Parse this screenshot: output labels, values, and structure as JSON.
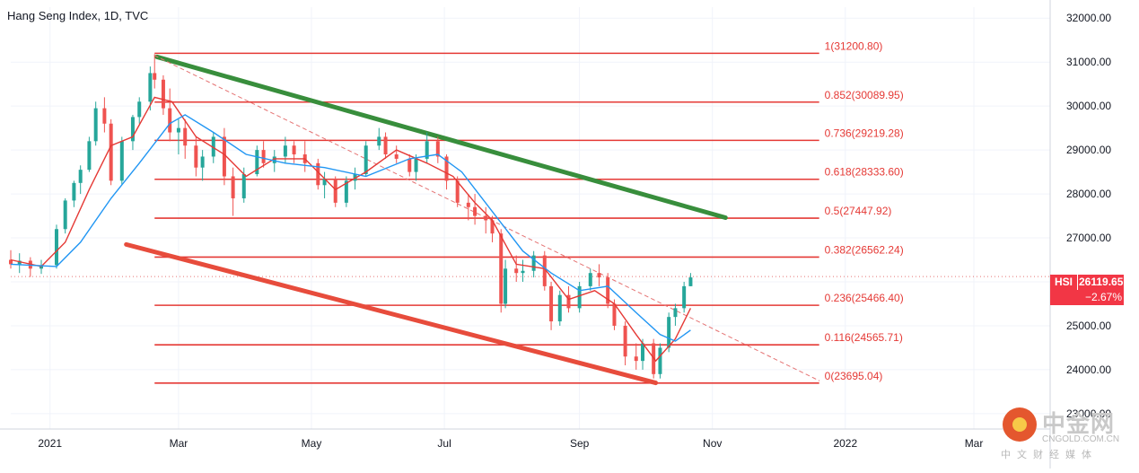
{
  "title": "Hang Seng Index, 1D, TVC",
  "chart_data": {
    "type": "candlestick",
    "symbol": "HSI",
    "last_price": "26119.65",
    "change": "−2.67%",
    "y_ticks": [
      "32000.00",
      "31000.00",
      "30000.00",
      "29000.00",
      "28000.00",
      "27000.00",
      "26000.00",
      "25000.00",
      "24000.00",
      "23000.00"
    ],
    "ylim": [
      22650,
      32250
    ],
    "x_labels": [
      {
        "label": "2021",
        "date": "2021-01-01"
      },
      {
        "label": "Mar",
        "date": "2021-03-01"
      },
      {
        "label": "May",
        "date": "2021-05-01"
      },
      {
        "label": "Jul",
        "date": "2021-07-01"
      },
      {
        "label": "Sep",
        "date": "2021-09-01"
      },
      {
        "label": "Nov",
        "date": "2021-11-01"
      },
      {
        "label": "2022",
        "date": "2022-01-01"
      },
      {
        "label": "Mar",
        "date": "2022-03-01"
      }
    ],
    "xlim": [
      "2020-12-14",
      "2022-04-05"
    ],
    "fibonacci": {
      "start_date": "2021-02-18",
      "end_date": "2021-12-20",
      "levels": [
        {
          "label": "1(31200.80)",
          "value": 31200.8
        },
        {
          "label": "0.852(30089.95)",
          "value": 30089.95
        },
        {
          "label": "0.736(29219.28)",
          "value": 29219.28
        },
        {
          "label": "0.618(28333.60)",
          "value": 28333.6
        },
        {
          "label": "0.5(27447.92)",
          "value": 27447.92
        },
        {
          "label": "0.382(26562.24)",
          "value": 26562.24
        },
        {
          "label": "0.236(25466.40)",
          "value": 25466.4
        },
        {
          "label": "0.116(24565.71)",
          "value": 24565.71
        },
        {
          "label": "0(23695.04)",
          "value": 23695.04
        }
      ]
    },
    "trendlines": [
      {
        "name": "green",
        "color": "#388e3c",
        "from": {
          "date": "2021-02-19",
          "value": 31120
        },
        "to": {
          "date": "2021-11-07",
          "value": 27460
        }
      },
      {
        "name": "red",
        "color": "#e74c3c",
        "from": {
          "date": "2021-02-05",
          "value": 26850
        },
        "to": {
          "date": "2021-10-06",
          "value": 23700
        }
      },
      {
        "name": "dashed",
        "color": "#e57373",
        "from": {
          "date": "2021-02-18",
          "value": 31150
        },
        "to": {
          "date": "2021-12-20",
          "value": 23750
        }
      }
    ],
    "candles": [
      {
        "d": "2020-12-14",
        "o": 26500,
        "h": 26720,
        "l": 26300,
        "c": 26400
      },
      {
        "d": "2020-12-18",
        "o": 26400,
        "h": 26650,
        "l": 26200,
        "c": 26480
      },
      {
        "d": "2020-12-23",
        "o": 26480,
        "h": 26560,
        "l": 26110,
        "c": 26300
      },
      {
        "d": "2020-12-28",
        "o": 26300,
        "h": 26500,
        "l": 26180,
        "c": 26380
      },
      {
        "d": "2021-01-04",
        "o": 26380,
        "h": 27300,
        "l": 26300,
        "c": 27200
      },
      {
        "d": "2021-01-08",
        "o": 27200,
        "h": 27900,
        "l": 27100,
        "c": 27850
      },
      {
        "d": "2021-01-12",
        "o": 27850,
        "h": 28300,
        "l": 27700,
        "c": 28250
      },
      {
        "d": "2021-01-15",
        "o": 28250,
        "h": 28650,
        "l": 28000,
        "c": 28550
      },
      {
        "d": "2021-01-19",
        "o": 28550,
        "h": 29300,
        "l": 28500,
        "c": 29200
      },
      {
        "d": "2021-01-22",
        "o": 29200,
        "h": 30100,
        "l": 29100,
        "c": 29950
      },
      {
        "d": "2021-01-26",
        "o": 29950,
        "h": 30200,
        "l": 29400,
        "c": 29600
      },
      {
        "d": "2021-01-29",
        "o": 29600,
        "h": 29700,
        "l": 28200,
        "c": 28300
      },
      {
        "d": "2021-02-03",
        "o": 28300,
        "h": 29300,
        "l": 28200,
        "c": 29200
      },
      {
        "d": "2021-02-08",
        "o": 29200,
        "h": 29800,
        "l": 29000,
        "c": 29750
      },
      {
        "d": "2021-02-11",
        "o": 29750,
        "h": 30200,
        "l": 29600,
        "c": 30100
      },
      {
        "d": "2021-02-16",
        "o": 30100,
        "h": 30900,
        "l": 29900,
        "c": 30750
      },
      {
        "d": "2021-02-18",
        "o": 30750,
        "h": 31180,
        "l": 30400,
        "c": 30600
      },
      {
        "d": "2021-02-22",
        "o": 30600,
        "h": 30700,
        "l": 29800,
        "c": 29950
      },
      {
        "d": "2021-02-25",
        "o": 29950,
        "h": 30400,
        "l": 29200,
        "c": 29400
      },
      {
        "d": "2021-03-01",
        "o": 29400,
        "h": 29700,
        "l": 28900,
        "c": 29500
      },
      {
        "d": "2021-03-04",
        "o": 29500,
        "h": 29700,
        "l": 28800,
        "c": 29100
      },
      {
        "d": "2021-03-09",
        "o": 29100,
        "h": 29300,
        "l": 28400,
        "c": 28600
      },
      {
        "d": "2021-03-12",
        "o": 28600,
        "h": 29000,
        "l": 28300,
        "c": 28850
      },
      {
        "d": "2021-03-17",
        "o": 28850,
        "h": 29400,
        "l": 28700,
        "c": 29300
      },
      {
        "d": "2021-03-22",
        "o": 29300,
        "h": 29500,
        "l": 28200,
        "c": 28400
      },
      {
        "d": "2021-03-26",
        "o": 28400,
        "h": 28600,
        "l": 27500,
        "c": 27900
      },
      {
        "d": "2021-03-31",
        "o": 27900,
        "h": 28600,
        "l": 27800,
        "c": 28450
      },
      {
        "d": "2021-04-06",
        "o": 28450,
        "h": 29100,
        "l": 28400,
        "c": 29000
      },
      {
        "d": "2021-04-09",
        "o": 29000,
        "h": 29200,
        "l": 28600,
        "c": 28700
      },
      {
        "d": "2021-04-14",
        "o": 28700,
        "h": 29000,
        "l": 28500,
        "c": 28850
      },
      {
        "d": "2021-04-19",
        "o": 28850,
        "h": 29300,
        "l": 28700,
        "c": 29100
      },
      {
        "d": "2021-04-23",
        "o": 29100,
        "h": 29200,
        "l": 28700,
        "c": 28900
      },
      {
        "d": "2021-04-28",
        "o": 28900,
        "h": 29200,
        "l": 28500,
        "c": 28700
      },
      {
        "d": "2021-05-04",
        "o": 28700,
        "h": 28800,
        "l": 28100,
        "c": 28200
      },
      {
        "d": "2021-05-07",
        "o": 28200,
        "h": 28500,
        "l": 27900,
        "c": 28350
      },
      {
        "d": "2021-05-12",
        "o": 28350,
        "h": 28400,
        "l": 27700,
        "c": 27800
      },
      {
        "d": "2021-05-17",
        "o": 27800,
        "h": 28400,
        "l": 27700,
        "c": 28300
      },
      {
        "d": "2021-05-21",
        "o": 28300,
        "h": 28600,
        "l": 28100,
        "c": 28450
      },
      {
        "d": "2021-05-26",
        "o": 28450,
        "h": 29200,
        "l": 28400,
        "c": 29100
      },
      {
        "d": "2021-06-01",
        "o": 29100,
        "h": 29500,
        "l": 29000,
        "c": 29300
      },
      {
        "d": "2021-06-04",
        "o": 29300,
        "h": 29400,
        "l": 28800,
        "c": 28900
      },
      {
        "d": "2021-06-09",
        "o": 28900,
        "h": 29100,
        "l": 28700,
        "c": 28800
      },
      {
        "d": "2021-06-15",
        "o": 28800,
        "h": 28900,
        "l": 28400,
        "c": 28500
      },
      {
        "d": "2021-06-18",
        "o": 28500,
        "h": 28900,
        "l": 28300,
        "c": 28800
      },
      {
        "d": "2021-06-23",
        "o": 28800,
        "h": 29400,
        "l": 28700,
        "c": 29200
      },
      {
        "d": "2021-06-28",
        "o": 29200,
        "h": 29300,
        "l": 28700,
        "c": 28850
      },
      {
        "d": "2021-07-02",
        "o": 28850,
        "h": 28900,
        "l": 28100,
        "c": 28300
      },
      {
        "d": "2021-07-07",
        "o": 28300,
        "h": 28400,
        "l": 27700,
        "c": 27800
      },
      {
        "d": "2021-07-12",
        "o": 27800,
        "h": 28000,
        "l": 27400,
        "c": 27700
      },
      {
        "d": "2021-07-15",
        "o": 27700,
        "h": 28000,
        "l": 27300,
        "c": 27500
      },
      {
        "d": "2021-07-20",
        "o": 27500,
        "h": 27700,
        "l": 27100,
        "c": 27400
      },
      {
        "d": "2021-07-23",
        "o": 27400,
        "h": 27500,
        "l": 26900,
        "c": 27100
      },
      {
        "d": "2021-07-27",
        "o": 27100,
        "h": 27200,
        "l": 25300,
        "c": 25500
      },
      {
        "d": "2021-07-29",
        "o": 25500,
        "h": 26500,
        "l": 25400,
        "c": 26300
      },
      {
        "d": "2021-08-03",
        "o": 26300,
        "h": 26600,
        "l": 26000,
        "c": 26200
      },
      {
        "d": "2021-08-06",
        "o": 26200,
        "h": 26500,
        "l": 26000,
        "c": 26250
      },
      {
        "d": "2021-08-11",
        "o": 26250,
        "h": 26700,
        "l": 26100,
        "c": 26600
      },
      {
        "d": "2021-08-16",
        "o": 26600,
        "h": 26700,
        "l": 25800,
        "c": 25900
      },
      {
        "d": "2021-08-19",
        "o": 25900,
        "h": 26000,
        "l": 24900,
        "c": 25100
      },
      {
        "d": "2021-08-23",
        "o": 25100,
        "h": 25800,
        "l": 25000,
        "c": 25700
      },
      {
        "d": "2021-08-27",
        "o": 25700,
        "h": 25900,
        "l": 25300,
        "c": 25400
      },
      {
        "d": "2021-09-01",
        "o": 25400,
        "h": 26000,
        "l": 25300,
        "c": 25900
      },
      {
        "d": "2021-09-06",
        "o": 25900,
        "h": 26300,
        "l": 25800,
        "c": 26200
      },
      {
        "d": "2021-09-10",
        "o": 26200,
        "h": 26400,
        "l": 25900,
        "c": 26100
      },
      {
        "d": "2021-09-14",
        "o": 26100,
        "h": 26200,
        "l": 25400,
        "c": 25500
      },
      {
        "d": "2021-09-17",
        "o": 25500,
        "h": 25600,
        "l": 24900,
        "c": 25000
      },
      {
        "d": "2021-09-22",
        "o": 25000,
        "h": 25100,
        "l": 24100,
        "c": 24300
      },
      {
        "d": "2021-09-27",
        "o": 24300,
        "h": 24600,
        "l": 24000,
        "c": 24200
      },
      {
        "d": "2021-09-30",
        "o": 24200,
        "h": 24700,
        "l": 24000,
        "c": 24600
      },
      {
        "d": "2021-10-05",
        "o": 24600,
        "h": 24700,
        "l": 23800,
        "c": 23900
      },
      {
        "d": "2021-10-08",
        "o": 23900,
        "h": 24600,
        "l": 23800,
        "c": 24500
      },
      {
        "d": "2021-10-12",
        "o": 24500,
        "h": 25300,
        "l": 24400,
        "c": 25200
      },
      {
        "d": "2021-10-15",
        "o": 25200,
        "h": 25500,
        "l": 25000,
        "c": 25400
      },
      {
        "d": "2021-10-19",
        "o": 25400,
        "h": 26000,
        "l": 25300,
        "c": 25900
      },
      {
        "d": "2021-10-22",
        "o": 25900,
        "h": 26200,
        "l": 25900,
        "c": 26100
      }
    ],
    "ma": [
      {
        "name": "short",
        "color": "#e53935",
        "points": [
          [
            "2020-12-14",
            26500
          ],
          [
            "2020-12-28",
            26350
          ],
          [
            "2021-01-08",
            26900
          ],
          [
            "2021-01-19",
            28100
          ],
          [
            "2021-01-29",
            29100
          ],
          [
            "2021-02-08",
            29300
          ],
          [
            "2021-02-18",
            30200
          ],
          [
            "2021-02-26",
            30100
          ],
          [
            "2021-03-09",
            29300
          ],
          [
            "2021-03-22",
            28900
          ],
          [
            "2021-04-01",
            28400
          ],
          [
            "2021-04-14",
            28800
          ],
          [
            "2021-04-28",
            28800
          ],
          [
            "2021-05-12",
            28100
          ],
          [
            "2021-05-26",
            28500
          ],
          [
            "2021-06-09",
            29000
          ],
          [
            "2021-06-23",
            28700
          ],
          [
            "2021-07-05",
            28400
          ],
          [
            "2021-07-15",
            27800
          ],
          [
            "2021-07-23",
            27400
          ],
          [
            "2021-08-03",
            26400
          ],
          [
            "2021-08-16",
            26300
          ],
          [
            "2021-08-27",
            25600
          ],
          [
            "2021-09-08",
            25800
          ],
          [
            "2021-09-17",
            25500
          ],
          [
            "2021-09-27",
            24800
          ],
          [
            "2021-10-06",
            24200
          ],
          [
            "2021-10-15",
            24700
          ],
          [
            "2021-10-22",
            25400
          ]
        ]
      },
      {
        "name": "long",
        "color": "#2196f3",
        "points": [
          [
            "2020-12-14",
            26400
          ],
          [
            "2021-01-04",
            26350
          ],
          [
            "2021-01-15",
            26900
          ],
          [
            "2021-01-29",
            27900
          ],
          [
            "2021-02-11",
            28700
          ],
          [
            "2021-02-25",
            29600
          ],
          [
            "2021-03-04",
            29800
          ],
          [
            "2021-03-17",
            29400
          ],
          [
            "2021-04-01",
            28900
          ],
          [
            "2021-04-19",
            28700
          ],
          [
            "2021-05-07",
            28600
          ],
          [
            "2021-05-26",
            28400
          ],
          [
            "2021-06-15",
            28800
          ],
          [
            "2021-06-28",
            28900
          ],
          [
            "2021-07-09",
            28500
          ],
          [
            "2021-07-23",
            27600
          ],
          [
            "2021-08-06",
            26700
          ],
          [
            "2021-08-19",
            26200
          ],
          [
            "2021-09-01",
            25800
          ],
          [
            "2021-09-14",
            25900
          ],
          [
            "2021-09-27",
            25300
          ],
          [
            "2021-10-08",
            24800
          ],
          [
            "2021-10-15",
            24650
          ],
          [
            "2021-10-22",
            24900
          ]
        ]
      }
    ]
  },
  "badge": {
    "symbol": "HSI",
    "price": "26119.65",
    "change": "−2.67%"
  },
  "watermark": {
    "name": "中金网",
    "url": "CNGOLD.COM.CN",
    "sub": "中文财经媒体"
  }
}
